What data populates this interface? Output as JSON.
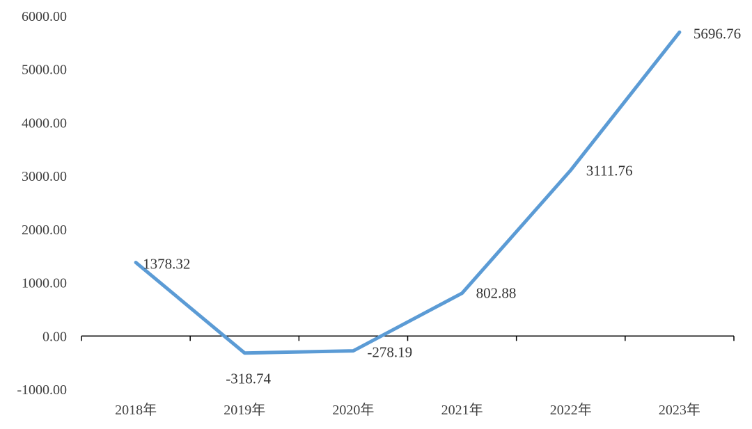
{
  "chart_data": {
    "type": "line",
    "categories": [
      "2018年",
      "2019年",
      "2020年",
      "2021年",
      "2022年",
      "2023年"
    ],
    "series": [
      {
        "values": [
          1378.32,
          -318.74,
          -278.19,
          802.88,
          3111.76,
          5696.76
        ]
      }
    ],
    "data_labels": [
      "1378.32",
      "-318.74",
      "-278.19",
      "802.88",
      "3111.76",
      "5696.76"
    ],
    "y_ticks": [
      "-1000.00",
      "0.00",
      "1000.00",
      "2000.00",
      "3000.00",
      "4000.00",
      "5000.00",
      "6000.00"
    ],
    "ylim": [
      -1000,
      6000
    ],
    "grid": false,
    "legend": "none",
    "line_color": "#5B9BD5",
    "axis_color": "#000000"
  }
}
